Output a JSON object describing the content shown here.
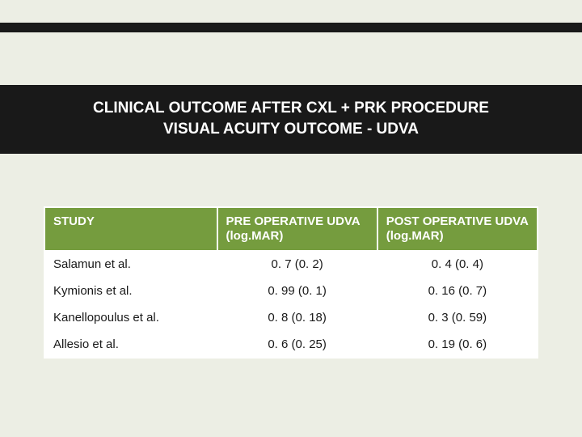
{
  "title": {
    "line1": "CLINICAL OUTCOME AFTER CXL + PRK PROCEDURE",
    "line2": "VISUAL ACUITY OUTCOME  - UDVA"
  },
  "colors": {
    "page_bg": "#eceee4",
    "banner_bg": "#191919",
    "banner_text": "#ffffff",
    "header_bg": "#759c3e",
    "header_text": "#ffffff",
    "cell_bg": "#ffffff",
    "cell_text": "#191919",
    "border": "#ffffff"
  },
  "table": {
    "columns": [
      "STUDY",
      "PRE OPERATIVE UDVA (log.MAR)",
      "POST OPERATIVE UDVA (log.MAR)"
    ],
    "rows": [
      {
        "study": "Salamun et al.",
        "pre": "0. 7  (0. 2)",
        "post": "0. 4 (0. 4)"
      },
      {
        "study": "Kymionis et al.",
        "pre": "0. 99 (0. 1)",
        "post": "0. 16 (0. 7)"
      },
      {
        "study": "Kanellopoulus et al.",
        "pre": "0. 8 (0. 18)",
        "post": "0. 3 (0. 59)"
      },
      {
        "study": "Allesio et al.",
        "pre": "0. 6 (0. 25)",
        "post": "0. 19 (0. 6)"
      }
    ]
  }
}
